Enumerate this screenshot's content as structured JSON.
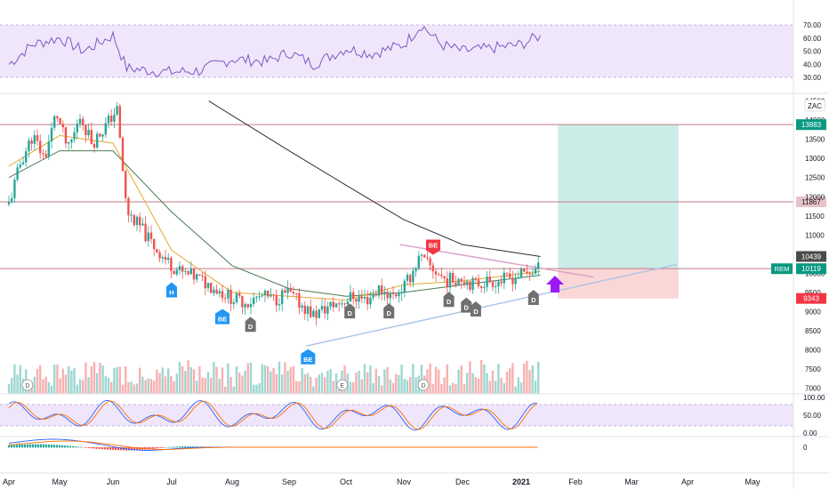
{
  "chart_data": {
    "type": "candlestick",
    "symbol": "ZAC",
    "x_ticks": [
      "Apr",
      "May",
      "Jun",
      "Jul",
      "Aug",
      "Sep",
      "Oct",
      "Nov",
      "Dec",
      "2021",
      "Feb",
      "Mar",
      "Apr",
      "May"
    ],
    "price_axis": {
      "ticks": [
        7000,
        7500,
        8000,
        8500,
        9000,
        9500,
        10000,
        10500,
        11000,
        11500,
        12000,
        12500,
        13000,
        13500,
        14000,
        14500
      ],
      "ylim": [
        6850,
        14700
      ]
    },
    "horizontal_levels": [
      {
        "value": 13883,
        "label": "13883",
        "color": "#c27b85"
      },
      {
        "value": 11867,
        "label": "11867",
        "color": "#c27b85"
      },
      {
        "value": 10122,
        "label": "10122",
        "color": "#c27b85"
      }
    ],
    "right_badges": [
      {
        "value": 13883,
        "label": "13883",
        "color": "#089981"
      },
      {
        "value": 10439,
        "label": "10439",
        "color": "#4a4a4a"
      },
      {
        "value": 10119,
        "label": "10119",
        "color": "#089981",
        "tag": "REM"
      },
      {
        "value": 9343,
        "label": "9343",
        "color": "#f23645"
      }
    ],
    "position_tool": {
      "entry": 10122,
      "target": 13883,
      "stop": 9343,
      "x_start": "2021-01-22",
      "x_end": "2021-03-27"
    },
    "price_path": [
      {
        "x": "2020-04-01",
        "y": 11800
      },
      {
        "x": "2020-04-08",
        "y": 12900
      },
      {
        "x": "2020-04-15",
        "y": 13600
      },
      {
        "x": "2020-04-22",
        "y": 13000
      },
      {
        "x": "2020-04-29",
        "y": 14200
      },
      {
        "x": "2020-05-06",
        "y": 13200
      },
      {
        "x": "2020-05-13",
        "y": 14100
      },
      {
        "x": "2020-05-20",
        "y": 13400
      },
      {
        "x": "2020-05-27",
        "y": 13800
      },
      {
        "x": "2020-06-03",
        "y": 14300
      },
      {
        "x": "2020-06-08",
        "y": 11600
      },
      {
        "x": "2020-06-15",
        "y": 11200
      },
      {
        "x": "2020-06-22",
        "y": 10700
      },
      {
        "x": "2020-06-29",
        "y": 10300
      },
      {
        "x": "2020-07-06",
        "y": 10000
      },
      {
        "x": "2020-07-13",
        "y": 9900
      },
      {
        "x": "2020-07-20",
        "y": 9700
      },
      {
        "x": "2020-07-27",
        "y": 9500
      },
      {
        "x": "2020-08-03",
        "y": 9300
      },
      {
        "x": "2020-08-10",
        "y": 9250
      },
      {
        "x": "2020-08-17",
        "y": 9400
      },
      {
        "x": "2020-08-24",
        "y": 9300
      },
      {
        "x": "2020-08-31",
        "y": 9500
      },
      {
        "x": "2020-09-07",
        "y": 9200
      },
      {
        "x": "2020-09-14",
        "y": 8900
      },
      {
        "x": "2020-09-21",
        "y": 9100
      },
      {
        "x": "2020-09-28",
        "y": 9250
      },
      {
        "x": "2020-10-05",
        "y": 9400
      },
      {
        "x": "2020-10-12",
        "y": 9300
      },
      {
        "x": "2020-10-19",
        "y": 9600
      },
      {
        "x": "2020-10-26",
        "y": 9400
      },
      {
        "x": "2020-11-02",
        "y": 9700
      },
      {
        "x": "2020-11-09",
        "y": 10400
      },
      {
        "x": "2020-11-16",
        "y": 10100
      },
      {
        "x": "2020-11-23",
        "y": 9800
      },
      {
        "x": "2020-11-30",
        "y": 9900
      },
      {
        "x": "2020-12-07",
        "y": 9700
      },
      {
        "x": "2020-12-14",
        "y": 9800
      },
      {
        "x": "2020-12-21",
        "y": 9800
      },
      {
        "x": "2020-12-28",
        "y": 9900
      },
      {
        "x": "2021-01-04",
        "y": 10000
      },
      {
        "x": "2021-01-11",
        "y": 10119
      }
    ],
    "moving_averages": [
      {
        "color": "#2a2e39",
        "values": [
          {
            "x": "2020-07-20",
            "y": 14500
          },
          {
            "x": "2020-09-01",
            "y": 13200
          },
          {
            "x": "2020-10-01",
            "y": 12300
          },
          {
            "x": "2020-11-01",
            "y": 11400
          },
          {
            "x": "2020-12-01",
            "y": 10750
          },
          {
            "x": "2021-01-12",
            "y": 10439
          }
        ]
      },
      {
        "color": "#4a7a52",
        "values": [
          {
            "x": "2020-04-01",
            "y": 12500
          },
          {
            "x": "2020-05-01",
            "y": 13200
          },
          {
            "x": "2020-06-01",
            "y": 13200
          },
          {
            "x": "2020-07-01",
            "y": 11600
          },
          {
            "x": "2020-08-01",
            "y": 10200
          },
          {
            "x": "2020-09-01",
            "y": 9600
          },
          {
            "x": "2020-10-01",
            "y": 9400
          },
          {
            "x": "2020-11-01",
            "y": 9500
          },
          {
            "x": "2020-12-01",
            "y": 9700
          },
          {
            "x": "2021-01-12",
            "y": 9950
          }
        ]
      },
      {
        "color": "#e8a830",
        "values": [
          {
            "x": "2020-04-01",
            "y": 12800
          },
          {
            "x": "2020-05-01",
            "y": 13600
          },
          {
            "x": "2020-06-01",
            "y": 13400
          },
          {
            "x": "2020-07-01",
            "y": 10600
          },
          {
            "x": "2020-08-01",
            "y": 9500
          },
          {
            "x": "2020-09-01",
            "y": 9400
          },
          {
            "x": "2020-10-01",
            "y": 9300
          },
          {
            "x": "2020-11-01",
            "y": 9700
          },
          {
            "x": "2020-12-01",
            "y": 9800
          },
          {
            "x": "2021-01-12",
            "y": 10050
          }
        ]
      }
    ],
    "trendlines": [
      {
        "color": "#a9c4e8",
        "from": {
          "x": "2020-09-10",
          "y": 8100
        },
        "to": {
          "x": "2021-03-26",
          "y": 10230
        }
      },
      {
        "color": "#d8a0c8",
        "from": {
          "x": "2020-10-30",
          "y": 10750
        },
        "to": {
          "x": "2021-02-10",
          "y": 9900
        }
      }
    ],
    "markers": [
      {
        "label": "H",
        "x": "2020-07-01",
        "y": 9650,
        "color": "#2196f3",
        "direction": "up"
      },
      {
        "label": "BE",
        "x": "2020-07-27",
        "y": 8950,
        "color": "#2196f3",
        "direction": "up"
      },
      {
        "label": "D",
        "x": "2020-08-11",
        "y": 8750,
        "color": "#707070",
        "direction": "up"
      },
      {
        "label": "BE",
        "x": "2020-09-11",
        "y": 7900,
        "color": "#2196f3",
        "direction": "up"
      },
      {
        "label": "D",
        "x": "2020-10-03",
        "y": 9100,
        "color": "#707070",
        "direction": "up"
      },
      {
        "label": "D",
        "x": "2020-10-24",
        "y": 9100,
        "color": "#707070",
        "direction": "up"
      },
      {
        "label": "BE",
        "x": "2020-11-16",
        "y": 10600,
        "color": "#f23645",
        "direction": "down"
      },
      {
        "label": "D",
        "x": "2020-11-24",
        "y": 9400,
        "color": "#707070",
        "direction": "up"
      },
      {
        "label": "D",
        "x": "2020-12-03",
        "y": 9250,
        "color": "#707070",
        "direction": "up"
      },
      {
        "label": "D",
        "x": "2020-12-08",
        "y": 9150,
        "color": "#707070",
        "direction": "up"
      },
      {
        "label": "D",
        "x": "2021-01-08",
        "y": 9450,
        "color": "#707070",
        "direction": "up"
      }
    ],
    "event_markers": [
      {
        "label": "D",
        "x": "2020-04-12"
      },
      {
        "label": "E",
        "x": "2020-09-29"
      },
      {
        "label": "D",
        "x": "2020-11-11"
      }
    ],
    "rsi": {
      "ticks": [
        30,
        40,
        50,
        60,
        70
      ],
      "tick_labels": [
        "30.00",
        "40.00",
        "50.00",
        "60.00",
        "70.00"
      ],
      "band": [
        30,
        70
      ],
      "color": "#7e57c2",
      "values": [
        {
          "x": "2020-04-01",
          "y": 40
        },
        {
          "x": "2020-04-15",
          "y": 55
        },
        {
          "x": "2020-05-01",
          "y": 60
        },
        {
          "x": "2020-05-15",
          "y": 50
        },
        {
          "x": "2020-06-01",
          "y": 62
        },
        {
          "x": "2020-06-08",
          "y": 37
        },
        {
          "x": "2020-06-20",
          "y": 35
        },
        {
          "x": "2020-07-01",
          "y": 34
        },
        {
          "x": "2020-07-15",
          "y": 35
        },
        {
          "x": "2020-08-01",
          "y": 44
        },
        {
          "x": "2020-08-20",
          "y": 42
        },
        {
          "x": "2020-09-01",
          "y": 49
        },
        {
          "x": "2020-09-14",
          "y": 40
        },
        {
          "x": "2020-10-01",
          "y": 52
        },
        {
          "x": "2020-10-15",
          "y": 48
        },
        {
          "x": "2020-11-01",
          "y": 55
        },
        {
          "x": "2020-11-10",
          "y": 70
        },
        {
          "x": "2020-11-20",
          "y": 55
        },
        {
          "x": "2020-12-01",
          "y": 50
        },
        {
          "x": "2020-12-15",
          "y": 52
        },
        {
          "x": "2021-01-01",
          "y": 55
        },
        {
          "x": "2021-01-12",
          "y": 62
        }
      ]
    },
    "stochastic": {
      "ticks": [
        0,
        50,
        100
      ],
      "tick_labels": [
        "0.00",
        "50.00",
        "100.00"
      ],
      "band": [
        20,
        80
      ]
    },
    "macd": {
      "ticks": [
        0
      ],
      "tick_labels": [
        "0"
      ]
    }
  }
}
